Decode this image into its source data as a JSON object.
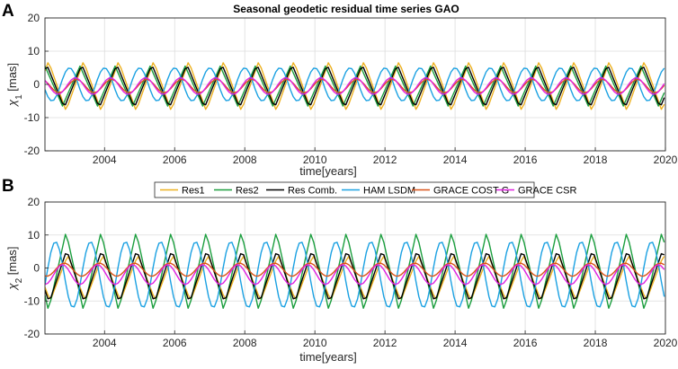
{
  "figure": {
    "panel_a_label": "A",
    "panel_b_label": "B"
  },
  "chart_data": [
    {
      "type": "line",
      "panel": "A",
      "title": "Seasonal geodetic residual time series GAO",
      "xlabel": "time[years]",
      "ylabel": "χ1 [mas]",
      "ylabel_symbol": "χ",
      "ylabel_sub": "1",
      "ylabel_unit": "[mas]",
      "xlim": [
        2002.3,
        2020
      ],
      "ylim": [
        -20,
        20
      ],
      "xticks": [
        2004,
        2006,
        2008,
        2010,
        2012,
        2014,
        2016,
        2018,
        2020
      ],
      "yticks": [
        -20,
        -10,
        0,
        10,
        20
      ],
      "grid": true,
      "series": [
        {
          "name": "Res1",
          "color": "#EDB120",
          "period": 1.0,
          "amplitude": 7.5,
          "phase": 0.1,
          "offset": -0.5,
          "shape": "triangle"
        },
        {
          "name": "Res2",
          "color": "#1B9E3E",
          "period": 1.0,
          "amplitude": 6.0,
          "phase": 0.2,
          "offset": -0.5,
          "shape": "triangle"
        },
        {
          "name": "Res Comb.",
          "color": "#000000",
          "period": 1.0,
          "amplitude": 6.5,
          "phase": 0.15,
          "offset": -0.5,
          "shape": "triangle"
        },
        {
          "name": "HAM LSDM",
          "color": "#1BA1E2",
          "period": 1.0,
          "amplitude": 5.0,
          "phase": 0.25,
          "offset": 0.0,
          "shape": "sine"
        },
        {
          "name": "GRACE COST G",
          "color": "#D95319",
          "period": 1.0,
          "amplitude": 2.0,
          "phase": 0.05,
          "offset": -0.5,
          "shape": "sine"
        },
        {
          "name": "GRACE CSR",
          "color": "#E020E0",
          "period": 1.0,
          "amplitude": 2.5,
          "phase": 0.08,
          "offset": -0.5,
          "shape": "sine"
        }
      ]
    },
    {
      "type": "line",
      "panel": "B",
      "title": "",
      "xlabel": "time[years]",
      "ylabel": "χ2 [mas]",
      "ylabel_symbol": "χ",
      "ylabel_sub": "2",
      "ylabel_unit": "[mas]",
      "xlim": [
        2002.3,
        2020
      ],
      "ylim": [
        -20,
        20
      ],
      "xticks": [
        2004,
        2006,
        2008,
        2010,
        2012,
        2014,
        2016,
        2018,
        2020
      ],
      "yticks": [
        -20,
        -10,
        0,
        10,
        20
      ],
      "grid": true,
      "legend_position": "top",
      "series": [
        {
          "name": "Res1",
          "color": "#EDB120",
          "period": 1.0,
          "amplitude": 7.0,
          "phase": 0.55,
          "offset": -3.0,
          "shape": "triangle"
        },
        {
          "name": "Res2",
          "color": "#1B9E3E",
          "period": 1.0,
          "amplitude": 12.0,
          "phase": 0.6,
          "offset": -1.0,
          "shape": "triangle"
        },
        {
          "name": "Res Comb.",
          "color": "#000000",
          "period": 1.0,
          "amplitude": 8.0,
          "phase": 0.58,
          "offset": -2.5,
          "shape": "triangle"
        },
        {
          "name": "HAM LSDM",
          "color": "#1BA1E2",
          "period": 1.0,
          "amplitude": 10.0,
          "phase": 0.65,
          "offset": -2.0,
          "shape": "sine"
        },
        {
          "name": "GRACE COST G",
          "color": "#D95319",
          "period": 1.0,
          "amplitude": 2.0,
          "phase": 0.4,
          "offset": -0.5,
          "shape": "sine"
        },
        {
          "name": "GRACE CSR",
          "color": "#E020E0",
          "period": 1.0,
          "amplitude": 3.0,
          "phase": 0.45,
          "offset": -2.0,
          "shape": "sine"
        }
      ]
    }
  ],
  "legend": {
    "entries": [
      "Res1",
      "Res2",
      "Res Comb.",
      "HAM LSDM",
      "GRACE COST G",
      "GRACE CSR"
    ]
  }
}
